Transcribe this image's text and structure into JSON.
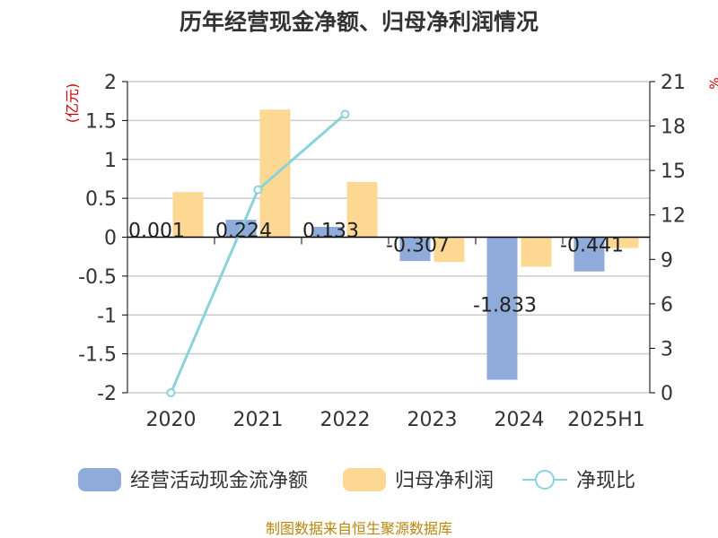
{
  "chart_data": {
    "type": "bar+line",
    "title": "历年经营现金净额、归母净利润情况",
    "left_axis": {
      "unit_label": "(亿元)",
      "ticks": [
        "2",
        "1.5",
        "1",
        "0.5",
        "0",
        "-0.5",
        "-1",
        "-1.5",
        "-2"
      ],
      "range": [
        -2,
        2
      ]
    },
    "right_axis": {
      "unit_label": "%",
      "ticks": [
        "21",
        "18",
        "15",
        "12",
        "9",
        "6",
        "3",
        "0"
      ],
      "range": [
        0,
        21
      ]
    },
    "categories": [
      "2020",
      "2021",
      "2022",
      "2023",
      "2024",
      "2025H1"
    ],
    "series": [
      {
        "name": "经营活动现金流净额",
        "type": "bar",
        "axis": "left",
        "color": "#8eabd9",
        "values": [
          0.001,
          0.224,
          0.133,
          -0.307,
          -1.833,
          -0.441
        ],
        "labels": [
          "0.001",
          "0.224",
          "0.133",
          "-0.307",
          "-1.833",
          "-0.441"
        ]
      },
      {
        "name": "归母净利润",
        "type": "bar",
        "axis": "left",
        "color": "#fdd893",
        "values": [
          0.58,
          1.64,
          0.71,
          -0.32,
          -0.38,
          -0.14
        ]
      },
      {
        "name": "净现比",
        "type": "line",
        "axis": "right",
        "color": "#8ad3db",
        "values": [
          0.0,
          13.7,
          18.8,
          null,
          null,
          null
        ]
      }
    ],
    "grid": true,
    "legend_position": "bottom"
  },
  "source": "制图数据来自恒生聚源数据库",
  "colors": {
    "title": "#333333",
    "axis_unit": "#cc0000",
    "source": "#b8860b",
    "grid": "#cccccc",
    "axis": "#000000"
  }
}
